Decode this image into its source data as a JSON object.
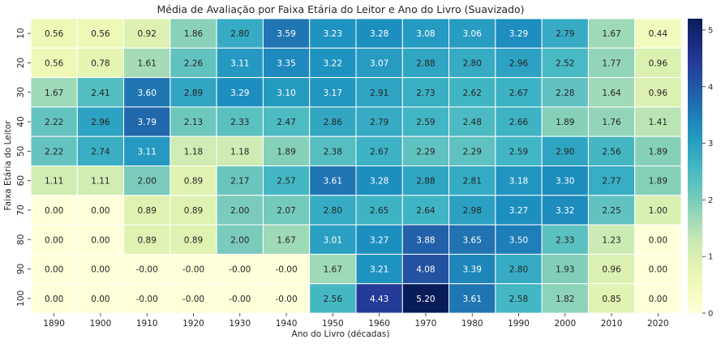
{
  "chart_data": {
    "type": "heatmap",
    "title": "Média de Avaliação por Faixa Etária do Leitor e Ano do Livro (Suavizado)",
    "xlabel": "Ano do Livro (décadas)",
    "ylabel": "Faixa Etária do Leitor",
    "x_categories": [
      "1890",
      "1900",
      "1910",
      "1920",
      "1930",
      "1940",
      "1950",
      "1960",
      "1970",
      "1980",
      "1990",
      "2000",
      "2010",
      "2020"
    ],
    "y_categories": [
      "10",
      "20",
      "30",
      "40",
      "50",
      "60",
      "70",
      "80",
      "90",
      "100"
    ],
    "values": [
      [
        0.56,
        0.56,
        0.92,
        1.86,
        2.8,
        3.59,
        3.23,
        3.28,
        3.08,
        3.06,
        3.29,
        2.79,
        1.67,
        0.44
      ],
      [
        0.56,
        0.78,
        1.61,
        2.26,
        3.11,
        3.35,
        3.22,
        3.07,
        2.88,
        2.8,
        2.96,
        2.52,
        1.77,
        0.96
      ],
      [
        1.67,
        2.41,
        3.6,
        2.89,
        3.29,
        3.1,
        3.17,
        2.91,
        2.73,
        2.62,
        2.67,
        2.28,
        1.64,
        0.96
      ],
      [
        2.22,
        2.96,
        3.79,
        2.13,
        2.33,
        2.47,
        2.86,
        2.79,
        2.59,
        2.48,
        2.66,
        1.89,
        1.76,
        1.41
      ],
      [
        2.22,
        2.74,
        3.11,
        1.18,
        1.18,
        1.89,
        2.38,
        2.67,
        2.29,
        2.29,
        2.59,
        2.9,
        2.56,
        1.89
      ],
      [
        1.11,
        1.11,
        2.0,
        0.89,
        2.17,
        2.57,
        3.61,
        3.28,
        2.88,
        2.81,
        3.18,
        3.3,
        2.77,
        1.89
      ],
      [
        0.0,
        0.0,
        0.89,
        0.89,
        2.0,
        2.07,
        2.8,
        2.65,
        2.64,
        2.98,
        3.27,
        3.32,
        2.25,
        1.0
      ],
      [
        0.0,
        0.0,
        0.89,
        0.89,
        2.0,
        1.67,
        3.01,
        3.27,
        3.88,
        3.65,
        3.5,
        2.33,
        1.23,
        0.0
      ],
      [
        0.0,
        0.0,
        -0.0,
        -0.0,
        -0.0,
        -0.0,
        1.67,
        3.21,
        4.08,
        3.39,
        2.8,
        1.93,
        0.96,
        0.0
      ],
      [
        0.0,
        0.0,
        -0.0,
        -0.0,
        -0.0,
        -0.0,
        2.56,
        4.43,
        5.2,
        3.61,
        2.58,
        1.82,
        0.85,
        0.0
      ]
    ],
    "value_labels": [
      [
        "0.56",
        "0.56",
        "0.92",
        "1.86",
        "2.80",
        "3.59",
        "3.23",
        "3.28",
        "3.08",
        "3.06",
        "3.29",
        "2.79",
        "1.67",
        "0.44"
      ],
      [
        "0.56",
        "0.78",
        "1.61",
        "2.26",
        "3.11",
        "3.35",
        "3.22",
        "3.07",
        "2.88",
        "2.80",
        "2.96",
        "2.52",
        "1.77",
        "0.96"
      ],
      [
        "1.67",
        "2.41",
        "3.60",
        "2.89",
        "3.29",
        "3.10",
        "3.17",
        "2.91",
        "2.73",
        "2.62",
        "2.67",
        "2.28",
        "1.64",
        "0.96"
      ],
      [
        "2.22",
        "2.96",
        "3.79",
        "2.13",
        "2.33",
        "2.47",
        "2.86",
        "2.79",
        "2.59",
        "2.48",
        "2.66",
        "1.89",
        "1.76",
        "1.41"
      ],
      [
        "2.22",
        "2.74",
        "3.11",
        "1.18",
        "1.18",
        "1.89",
        "2.38",
        "2.67",
        "2.29",
        "2.29",
        "2.59",
        "2.90",
        "2.56",
        "1.89"
      ],
      [
        "1.11",
        "1.11",
        "2.00",
        "0.89",
        "2.17",
        "2.57",
        "3.61",
        "3.28",
        "2.88",
        "2.81",
        "3.18",
        "3.30",
        "2.77",
        "1.89"
      ],
      [
        "0.00",
        "0.00",
        "0.89",
        "0.89",
        "2.00",
        "2.07",
        "2.80",
        "2.65",
        "2.64",
        "2.98",
        "3.27",
        "3.32",
        "2.25",
        "1.00"
      ],
      [
        "0.00",
        "0.00",
        "0.89",
        "0.89",
        "2.00",
        "1.67",
        "3.01",
        "3.27",
        "3.88",
        "3.65",
        "3.50",
        "2.33",
        "1.23",
        "0.00"
      ],
      [
        "0.00",
        "0.00",
        "-0.00",
        "-0.00",
        "-0.00",
        "-0.00",
        "1.67",
        "3.21",
        "4.08",
        "3.39",
        "2.80",
        "1.93",
        "0.96",
        "0.00"
      ],
      [
        "0.00",
        "0.00",
        "-0.00",
        "-0.00",
        "-0.00",
        "-0.00",
        "2.56",
        "4.43",
        "5.20",
        "3.61",
        "2.58",
        "1.82",
        "0.85",
        "0.00"
      ]
    ],
    "colormap": "YlGnBu",
    "vmin": 0,
    "vmax": 5.2,
    "colorbar_ticks": [
      "0",
      "1",
      "2",
      "3",
      "4",
      "5"
    ],
    "grid": true,
    "cell_border_color": "#ffffff",
    "annotation_dark_text": "#262626",
    "annotation_light_text": "#ffffff"
  }
}
